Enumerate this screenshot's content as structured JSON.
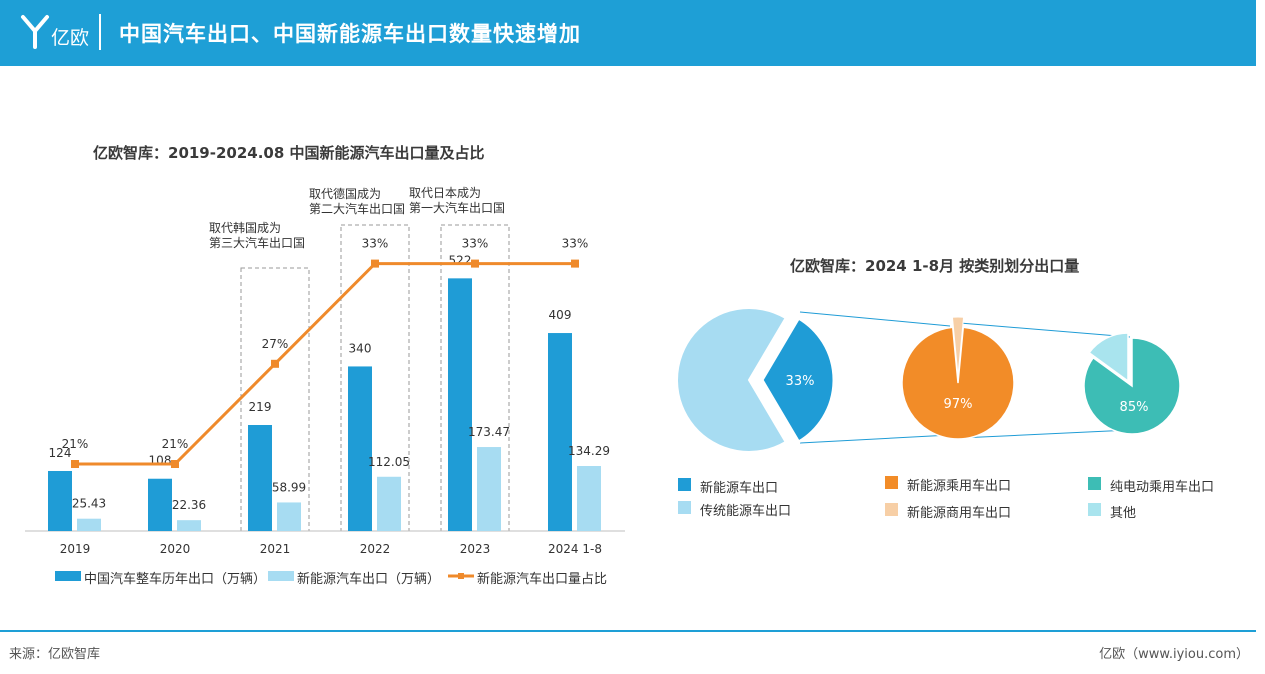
{
  "header": {
    "logo_text": "亿欧",
    "title": "中国汽车出口、中国新能源车出口数量快速增加"
  },
  "colors": {
    "header": "#1e9fd6",
    "total_bar": "#1f9cd6",
    "nev_bar": "#a7dcf2",
    "share_line": "#ef8a2b",
    "pie_nev": "#1f9cd6",
    "pie_traditional": "#a7dcf2",
    "pie_passenger": "#f28c28",
    "pie_commercial": "#f7cfa6",
    "pie_bev": "#3dbdb5",
    "pie_other": "#a9e4ee"
  },
  "chart_data": [
    {
      "type": "bar",
      "title": "亿欧智库：2019-2024.08 中国新能源汽车出口量及占比",
      "categories": [
        "2019",
        "2020",
        "2021",
        "2022",
        "2023",
        "2024 1-8"
      ],
      "series": [
        {
          "name": "中国汽车整车历年出口（万辆）",
          "type": "bar",
          "values": [
            124,
            108,
            219,
            340,
            522,
            409
          ],
          "labels": [
            "124",
            "108",
            "219",
            "340",
            "522",
            "409"
          ]
        },
        {
          "name": "新能源汽车出口（万辆）",
          "type": "bar",
          "values": [
            25.43,
            22.36,
            58.99,
            112.05,
            173.47,
            134.29
          ],
          "labels": [
            "25.43",
            "22.36",
            "58.99",
            "112.05",
            "173.47",
            "134.29"
          ]
        },
        {
          "name": "新能源汽车出口量占比",
          "type": "line",
          "values": [
            21,
            21,
            27,
            33,
            33,
            33
          ],
          "labels": [
            "21%",
            "21%",
            "27%",
            "33%",
            "33%",
            "33%"
          ]
        }
      ],
      "ylim": [
        0,
        600
      ],
      "share_ylim": [
        0,
        50
      ],
      "annotations": [
        {
          "category": "2021",
          "text": "取代韩国成为第三大汽车出口国",
          "lines": [
            "取代韩国成为",
            "第三大汽车出口国"
          ]
        },
        {
          "category": "2022",
          "text": "取代德国成为第二大汽车出口国",
          "lines": [
            "取代德国成为",
            "第二大汽车出口国"
          ]
        },
        {
          "category": "2023",
          "text": "取代日本成为第一大汽车出口国",
          "lines": [
            "取代日本成为",
            "第一大汽车出口国"
          ]
        }
      ],
      "legend": [
        "中国汽车整车历年出口（万辆）",
        "新能源汽车出口（万辆）",
        "新能源汽车出口量占比"
      ],
      "legend_position": "bottom"
    },
    {
      "type": "pie",
      "title": "亿欧智库：2024 1-8月 按类别划分出口量",
      "pies": [
        {
          "slices": [
            {
              "name": "新能源车出口",
              "value": 33,
              "label": "33%"
            },
            {
              "name": "传统能源车出口",
              "value": 67,
              "label": ""
            }
          ]
        },
        {
          "slices": [
            {
              "name": "新能源乘用车出口",
              "value": 97,
              "label": "97%"
            },
            {
              "name": "新能源商用车出口",
              "value": 3,
              "label": ""
            }
          ]
        },
        {
          "slices": [
            {
              "name": "纯电动乘用车出口",
              "value": 85,
              "label": "85%"
            },
            {
              "name": "其他",
              "value": 15,
              "label": ""
            }
          ]
        }
      ],
      "legend": [
        "新能源车出口",
        "传统能源车出口",
        "新能源乘用车出口",
        "新能源商用车出口",
        "纯电动乘用车出口",
        "其他"
      ]
    }
  ],
  "footer": {
    "source": "来源：亿欧智库",
    "brand": "亿欧（www.iyiou.com）"
  }
}
